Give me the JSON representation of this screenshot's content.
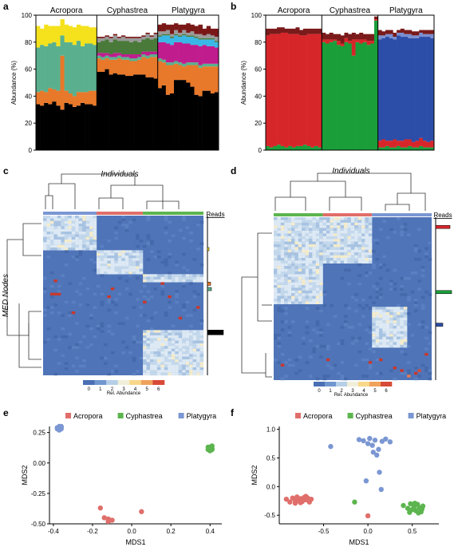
{
  "panels": {
    "a": {
      "letter": "a"
    },
    "b": {
      "letter": "b"
    },
    "c": {
      "letter": "c",
      "title": "Individuals",
      "ylabel": "MED Nodes",
      "reads": "Reads",
      "cbar_label": "Rel. Abundance"
    },
    "d": {
      "letter": "d",
      "title": "Individuals",
      "reads": "Reads",
      "cbar_label": "Rel. Abundance"
    },
    "e": {
      "letter": "e"
    },
    "f": {
      "letter": "f"
    }
  },
  "chart_data": [
    {
      "panel": "a",
      "type": "bar",
      "stacked": true,
      "ylabel": "Abundance (%)",
      "ylim": [
        0,
        100
      ],
      "yticks": [
        0,
        20,
        40,
        60,
        80,
        100
      ],
      "groups": [
        "Acropora",
        "Cyphastrea",
        "Platygyra"
      ],
      "group_sizes": [
        15,
        15,
        15
      ],
      "series": [
        {
          "color": "#000000",
          "values": [
            34,
            33,
            35,
            34,
            36,
            33,
            30,
            35,
            34,
            32,
            33,
            35,
            34,
            34,
            33,
            58,
            58,
            60,
            56,
            57,
            56,
            56,
            55,
            55,
            56,
            56,
            56,
            54,
            54,
            53,
            46,
            48,
            41,
            42,
            52,
            52,
            52,
            50,
            47,
            41,
            40,
            44,
            44,
            42,
            43
          ]
        },
        {
          "color": "#e8782a",
          "values": [
            9,
            11,
            8,
            12,
            9,
            11,
            40,
            9,
            8,
            8,
            10,
            8,
            9,
            10,
            11,
            10,
            9,
            8,
            11,
            10,
            12,
            11,
            12,
            11,
            10,
            11,
            13,
            14,
            15,
            16,
            20,
            17,
            22,
            21,
            12,
            11,
            10,
            13,
            16,
            22,
            21,
            18,
            18,
            20,
            19
          ]
        },
        {
          "color": "#5ab08e",
          "values": [
            33,
            34,
            34,
            33,
            35,
            33,
            15,
            36,
            38,
            38,
            38,
            34,
            36,
            35,
            34,
            2,
            2,
            2,
            2,
            2,
            2,
            2,
            2,
            2,
            2,
            2,
            2,
            2,
            2,
            2,
            2,
            2,
            2,
            2,
            2,
            2,
            2,
            2,
            2,
            2,
            2,
            2,
            2,
            2,
            2
          ]
        },
        {
          "color": "#f5e21d",
          "values": [
            16,
            12,
            16,
            13,
            12,
            15,
            12,
            13,
            12,
            13,
            12,
            15,
            13,
            12,
            13,
            0,
            0,
            0,
            0,
            0,
            0,
            0,
            0,
            0,
            0,
            0,
            0,
            0,
            0,
            0,
            0,
            0,
            0,
            0,
            0,
            0,
            0,
            0,
            0,
            0,
            0,
            0,
            0,
            0,
            0
          ]
        },
        {
          "color": "#c01c8e",
          "values": [
            0,
            0,
            0,
            0,
            0,
            0,
            0,
            0,
            0,
            0,
            0,
            0,
            0,
            0,
            0,
            2,
            3,
            2,
            2,
            3,
            2,
            2,
            2,
            3,
            3,
            2,
            2,
            3,
            2,
            2,
            12,
            13,
            14,
            13,
            14,
            15,
            15,
            14,
            13,
            13,
            14,
            14,
            13,
            13,
            12
          ]
        },
        {
          "color": "#3ab7e6",
          "values": [
            0,
            0,
            0,
            0,
            0,
            0,
            0,
            0,
            0,
            0,
            0,
            0,
            0,
            0,
            0,
            0,
            0,
            0,
            0,
            0,
            0,
            0,
            0,
            0,
            0,
            0,
            0,
            0,
            0,
            0,
            4,
            5,
            6,
            5,
            5,
            4,
            6,
            5,
            6,
            5,
            5,
            4,
            5,
            5,
            4
          ]
        },
        {
          "color": "#4a7a3a",
          "values": [
            0,
            0,
            0,
            0,
            0,
            0,
            0,
            0,
            0,
            0,
            0,
            0,
            0,
            0,
            0,
            8,
            9,
            10,
            9,
            10,
            9,
            10,
            10,
            9,
            10,
            9,
            9,
            10,
            9,
            10,
            1,
            1,
            1,
            1,
            1,
            1,
            1,
            1,
            1,
            1,
            1,
            1,
            1,
            1,
            1
          ]
        },
        {
          "color": "#9a9a9a",
          "values": [
            0,
            0,
            0,
            0,
            0,
            0,
            0,
            0,
            0,
            0,
            0,
            0,
            0,
            0,
            0,
            3,
            2,
            2,
            3,
            3,
            2,
            3,
            2,
            3,
            2,
            3,
            2,
            3,
            2,
            3,
            3,
            2,
            3,
            2,
            3,
            2,
            3,
            2,
            3,
            2,
            3,
            2,
            3,
            2,
            3
          ]
        },
        {
          "color": "#7a1818",
          "values": [
            0,
            0,
            0,
            0,
            0,
            0,
            0,
            0,
            0,
            0,
            0,
            0,
            0,
            0,
            0,
            1,
            1,
            1,
            1,
            1,
            1,
            1,
            1,
            1,
            1,
            1,
            1,
            1,
            1,
            1,
            5,
            6,
            4,
            7,
            5,
            6,
            4,
            7,
            5,
            6,
            7,
            5,
            6,
            5,
            6
          ]
        }
      ]
    },
    {
      "panel": "b",
      "type": "bar",
      "stacked": true,
      "ylabel": "Abundance (%)",
      "ylim": [
        0,
        100
      ],
      "yticks": [
        0,
        20,
        40,
        60,
        80,
        100
      ],
      "groups": [
        "Acropora",
        "Cyphastrea",
        "Platygyra"
      ],
      "group_sizes": [
        15,
        15,
        15
      ],
      "series": [
        {
          "color": "#1a9e3a",
          "values": [
            3,
            2,
            3,
            4,
            3,
            2,
            3,
            2,
            3,
            3,
            4,
            3,
            2,
            3,
            2,
            80,
            79,
            80,
            81,
            78,
            77,
            80,
            79,
            70,
            80,
            79,
            80,
            78,
            79,
            96,
            2,
            2,
            3,
            2,
            2,
            3,
            2,
            2,
            3,
            2,
            2,
            3,
            2,
            2,
            2
          ]
        },
        {
          "color": "#d7262a",
          "values": [
            82,
            84,
            83,
            82,
            84,
            85,
            83,
            84,
            83,
            82,
            81,
            83,
            84,
            83,
            84,
            2,
            3,
            2,
            1,
            3,
            2,
            3,
            2,
            12,
            2,
            3,
            2,
            3,
            2,
            1,
            5,
            6,
            4,
            5,
            6,
            4,
            5,
            6,
            5,
            4,
            5,
            6,
            5,
            4,
            5
          ]
        },
        {
          "color": "#2c4da8",
          "values": [
            0,
            0,
            0,
            0,
            0,
            0,
            0,
            0,
            0,
            0,
            0,
            0,
            0,
            0,
            0,
            0,
            0,
            0,
            0,
            0,
            0,
            0,
            0,
            0,
            0,
            0,
            0,
            0,
            0,
            0,
            75,
            75,
            77,
            76,
            74,
            78,
            77,
            76,
            75,
            77,
            76,
            75,
            77,
            78,
            76
          ]
        },
        {
          "color": "#7a8fd0",
          "values": [
            0,
            0,
            0,
            0,
            0,
            0,
            0,
            0,
            0,
            0,
            0,
            0,
            0,
            0,
            0,
            0,
            0,
            0,
            0,
            0,
            0,
            0,
            0,
            0,
            0,
            0,
            0,
            0,
            0,
            0,
            3,
            2,
            2,
            3,
            2,
            2,
            3,
            2,
            3,
            2,
            2,
            3,
            2,
            2,
            3
          ]
        },
        {
          "color": "#7a1a1a",
          "values": [
            5,
            4,
            4,
            5,
            4,
            3,
            4,
            4,
            5,
            4,
            5,
            4,
            4,
            4,
            4,
            5,
            4,
            5,
            4,
            5,
            6,
            4,
            5,
            5,
            4,
            5,
            4,
            5,
            5,
            2,
            4,
            3,
            3,
            3,
            3,
            2,
            3,
            3,
            3,
            3,
            3,
            2,
            3,
            3,
            3
          ]
        }
      ]
    },
    {
      "panel": "c",
      "type": "heatmap",
      "colorbar": {
        "label": "Rel. Abundance",
        "ticks": [
          0,
          1,
          2,
          3,
          4,
          5,
          6
        ]
      }
    },
    {
      "panel": "d",
      "type": "heatmap",
      "colorbar": {
        "label": "Rel. Abundance",
        "ticks": [
          0,
          1,
          2,
          3,
          4,
          5,
          6
        ]
      }
    },
    {
      "panel": "e",
      "type": "scatter",
      "xlabel": "MDS1",
      "ylabel": "MDS2",
      "xlim": [
        -0.42,
        0.46
      ],
      "ylim": [
        -0.5,
        0.3
      ],
      "xticks": [
        -0.4,
        -0.2,
        0.0,
        0.2,
        0.4
      ],
      "xticklabels": [
        "-0.4",
        "-0.2",
        "0.0",
        "0.2",
        "0.4"
      ],
      "yticks": [
        -0.5,
        -0.25,
        0.0,
        0.25
      ],
      "yticklabels": [
        "-0.50",
        "-0.25",
        "0.00",
        "0.25"
      ],
      "legend_position": "top",
      "series": [
        {
          "name": "Acropora",
          "color": "#e06e6a",
          "x": [
            -0.16,
            -0.14,
            -0.12,
            -0.12,
            -0.11,
            -0.1,
            0.05
          ],
          "y": [
            -0.37,
            -0.45,
            -0.48,
            -0.46,
            -0.47,
            -0.47,
            -0.4
          ]
        },
        {
          "name": "Cyphastrea",
          "color": "#5cb54e",
          "x": [
            0.39,
            0.4,
            0.4,
            0.41,
            0.41,
            0.4,
            0.39,
            0.41
          ],
          "y": [
            0.11,
            0.12,
            0.13,
            0.14,
            0.12,
            0.1,
            0.13,
            0.11
          ]
        },
        {
          "name": "Platygyra",
          "color": "#7b97d3",
          "x": [
            -0.38,
            -0.37,
            -0.37,
            -0.36,
            -0.36,
            -0.37,
            -0.38,
            -0.36
          ],
          "y": [
            0.28,
            0.29,
            0.3,
            0.29,
            0.28,
            0.27,
            0.29,
            0.3
          ]
        }
      ]
    },
    {
      "panel": "f",
      "type": "scatter",
      "xlabel": "MDS1",
      "ylabel": "MDS2",
      "xlim": [
        -1.0,
        0.8
      ],
      "ylim": [
        -0.65,
        1.05
      ],
      "xticks": [
        -0.5,
        0.0,
        0.5
      ],
      "xticklabels": [
        "-0.5",
        "0.0",
        "0.5"
      ],
      "yticks": [
        -0.5,
        0.0,
        0.5,
        1.0
      ],
      "yticklabels": [
        "-0.5",
        "0.0",
        "0.5",
        "1.0"
      ],
      "legend_position": "top",
      "series": [
        {
          "name": "Acropora",
          "color": "#e06e6a",
          "x": [
            -0.92,
            -0.88,
            -0.85,
            -0.82,
            -0.8,
            -0.78,
            -0.76,
            -0.74,
            -0.72,
            -0.7,
            -0.68,
            -0.66,
            -0.64,
            -0.82,
            -0.76,
            -0.7,
            0.0
          ],
          "y": [
            -0.22,
            -0.27,
            -0.2,
            -0.24,
            -0.18,
            -0.25,
            -0.21,
            -0.26,
            -0.19,
            -0.23,
            -0.2,
            -0.27,
            -0.22,
            -0.29,
            -0.28,
            -0.17,
            -0.51
          ]
        },
        {
          "name": "Cyphastrea",
          "color": "#5cb54e",
          "x": [
            -0.15,
            0.4,
            0.45,
            0.48,
            0.5,
            0.52,
            0.54,
            0.56,
            0.58,
            0.6,
            0.62,
            0.47,
            0.53,
            0.57,
            0.61
          ],
          "y": [
            -0.27,
            -0.33,
            -0.38,
            -0.3,
            -0.4,
            -0.35,
            -0.42,
            -0.31,
            -0.37,
            -0.44,
            -0.34,
            -0.45,
            -0.29,
            -0.46,
            -0.39
          ]
        },
        {
          "name": "Platygyra",
          "color": "#7b97d3",
          "x": [
            -0.42,
            -0.1,
            -0.05,
            0.0,
            0.02,
            0.05,
            0.08,
            0.12,
            0.16,
            0.2,
            0.25,
            0.06,
            0.1,
            0.13,
            -0.02,
            0.15
          ],
          "y": [
            0.7,
            0.82,
            0.8,
            0.75,
            0.84,
            0.72,
            0.81,
            0.65,
            0.79,
            0.83,
            0.78,
            0.6,
            0.55,
            0.25,
            0.1,
            -0.05
          ]
        }
      ]
    }
  ]
}
